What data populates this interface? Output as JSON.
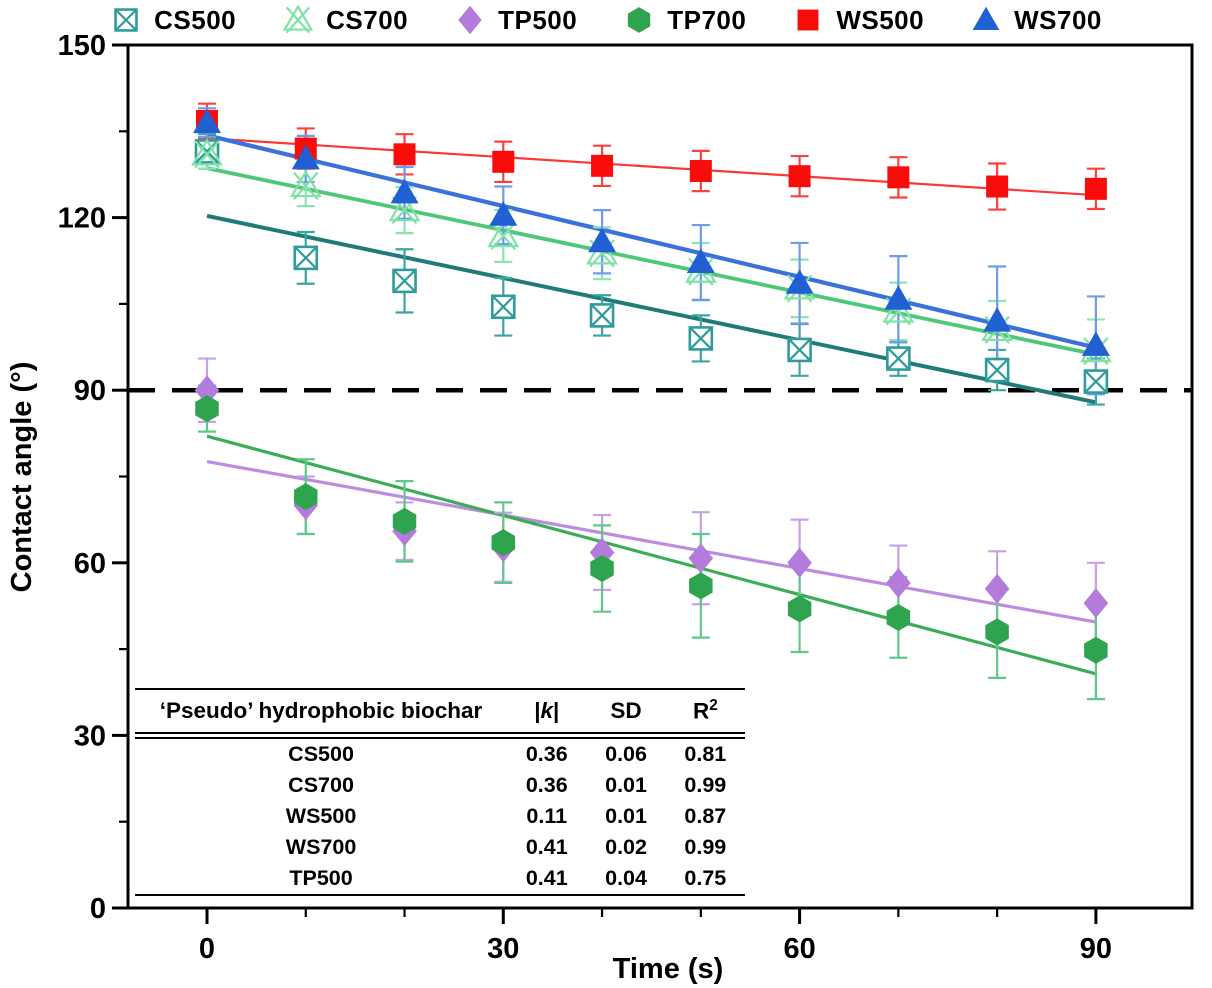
{
  "legend": {
    "items": [
      "CS500",
      "CS700",
      "TP500",
      "TP700",
      "WS500",
      "WS700"
    ]
  },
  "chart_data": {
    "type": "scatter",
    "title": "",
    "xlabel": "Time (s)",
    "ylabel": "Contact angle (°)",
    "xlim": [
      -8,
      100
    ],
    "ylim": [
      0,
      150
    ],
    "x_major_ticks": [
      0,
      30,
      60,
      90
    ],
    "x_minor_ticks": [
      10,
      20,
      40,
      50,
      70,
      80
    ],
    "y_major_ticks": [
      0,
      30,
      60,
      90,
      120,
      150
    ],
    "y_minor_ticks": [
      15,
      45,
      75,
      105,
      135
    ],
    "reference_line_y": 90,
    "x": [
      0,
      10,
      20,
      30,
      40,
      50,
      60,
      70,
      80,
      90
    ],
    "series": [
      {
        "name": "CS500",
        "marker": "crossed-square",
        "color": "#2E9C9B",
        "line_color": "#1E7B78",
        "errorbar_color": "#3BA5A3",
        "line_width": 4,
        "values": [
          131.5,
          113,
          109,
          104.5,
          103,
          99,
          97,
          95.5,
          93.5,
          91.5
        ],
        "errors": [
          3,
          4.5,
          5.5,
          5,
          3.5,
          4,
          4.5,
          3,
          3.5,
          4
        ],
        "fit_line": {
          "y_at_0": 120.3,
          "y_at_90": 87.9
        }
      },
      {
        "name": "CS700",
        "marker": "crossed-triangle",
        "color": "#7FE2A6",
        "line_color": "#4EC878",
        "errorbar_color": "#8CE5AE",
        "line_width": 3.8,
        "values": [
          131,
          125.5,
          121.3,
          116.8,
          113.8,
          110.6,
          107.7,
          103.7,
          100.5,
          96.8
        ],
        "errors": [
          2.5,
          3.5,
          4,
          4.5,
          4.5,
          5,
          5,
          5,
          5,
          5.5
        ],
        "fit_line": {
          "y_at_0": 128.6,
          "y_at_90": 96.2
        }
      },
      {
        "name": "TP500",
        "marker": "diamond",
        "color": "#B37BDC",
        "line_color": "#BD8CE0",
        "errorbar_color": "#C9A0E8",
        "line_width": 3.2,
        "values": [
          90,
          70,
          65.5,
          62.7,
          61.8,
          60.8,
          60,
          56.5,
          55.5,
          53
        ],
        "errors": [
          5.5,
          5,
          5,
          6,
          6.5,
          8,
          7.5,
          6.5,
          6.5,
          7
        ],
        "fit_line": {
          "y_at_0": 77.6,
          "y_at_90": 49.7
        }
      },
      {
        "name": "TP700",
        "marker": "hexagon",
        "color": "#2EA44F",
        "line_color": "#3BAD56",
        "errorbar_color": "#5FC98A",
        "line_width": 3.2,
        "values": [
          86.8,
          71.5,
          67.2,
          63.5,
          59,
          56,
          52,
          50.5,
          48,
          44.8
        ],
        "errors": [
          4,
          6.5,
          7,
          7,
          7.5,
          9,
          7.5,
          7,
          8,
          8.5
        ],
        "fit_line": {
          "y_at_0": 82.0,
          "y_at_90": 40.7
        }
      },
      {
        "name": "WS500",
        "marker": "square",
        "color": "#F90D0B",
        "line_color": "#FA3937",
        "errorbar_color": "#FA413F",
        "line_width": 2.2,
        "values": [
          136.8,
          132,
          131,
          129.7,
          129,
          128.1,
          127.2,
          127,
          125.4,
          125
        ],
        "errors": [
          3,
          3.5,
          3.5,
          3.5,
          3.5,
          3.5,
          3.5,
          3.5,
          4,
          3.5
        ],
        "fit_line": {
          "y_at_0": 133.8,
          "y_at_90": 123.9
        }
      },
      {
        "name": "WS700",
        "marker": "triangle",
        "color": "#2160D3",
        "line_color": "#3A72DC",
        "errorbar_color": "#6E9BEA",
        "line_width": 4.2,
        "values": [
          136.5,
          130.2,
          124.3,
          120.4,
          115.8,
          112.2,
          108.6,
          105.8,
          102,
          97.8
        ],
        "errors": [
          2.5,
          4,
          4.5,
          5,
          5.5,
          6.5,
          7,
          7.5,
          9.5,
          8.5
        ],
        "fit_line": {
          "y_at_0": 134.3,
          "y_at_90": 97.4
        }
      }
    ]
  },
  "table": {
    "headers": [
      "‘Pseudo’ hydrophobic biochar",
      "|k|",
      "SD",
      "R²"
    ],
    "rows": [
      [
        "CS500",
        "0.36",
        "0.06",
        "0.81"
      ],
      [
        "CS700",
        "0.36",
        "0.01",
        "0.99"
      ],
      [
        "WS500",
        "0.11",
        "0.01",
        "0.87"
      ],
      [
        "WS700",
        "0.41",
        "0.02",
        "0.99"
      ],
      [
        "TP500",
        "0.41",
        "0.04",
        "0.75"
      ]
    ]
  }
}
